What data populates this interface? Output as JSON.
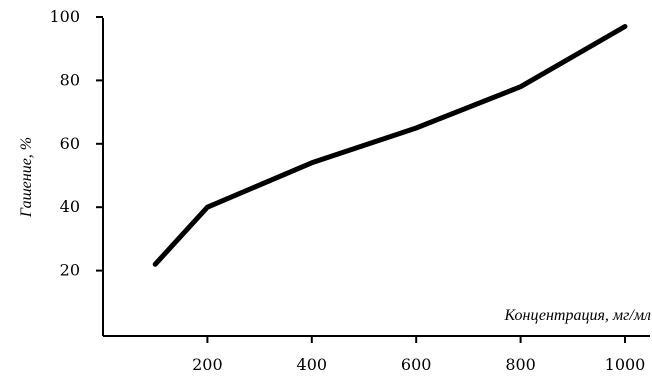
{
  "chart_data": {
    "type": "line",
    "title": "",
    "xlabel": "Концентрация, мг/мл",
    "ylabel": "Гашение, %",
    "xlim": [
      0,
      1050
    ],
    "ylim": [
      0,
      100
    ],
    "x_ticks": [
      200,
      400,
      600,
      800,
      1000
    ],
    "y_ticks": [
      20,
      40,
      60,
      80,
      100
    ],
    "grid": false,
    "legend": "none",
    "line_color": "#000000",
    "series": [
      {
        "x": [
          100,
          200,
          400,
          600,
          800,
          1000
        ],
        "values": [
          22,
          40,
          54,
          65,
          78,
          97
        ]
      }
    ]
  }
}
